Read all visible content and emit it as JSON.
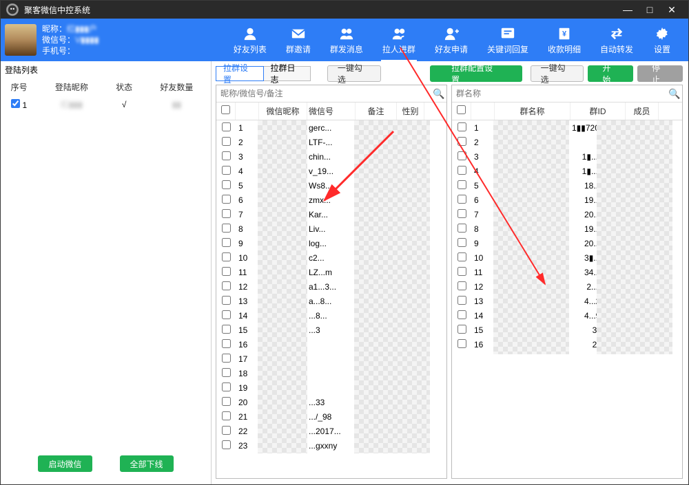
{
  "app_title": "聚客微信中控系统",
  "window_buttons": {
    "min": "—",
    "max": "□",
    "close": "✕"
  },
  "user": {
    "nick_label": "昵称：",
    "nick_value": "红▮▮▮户",
    "wx_label": "微信号：",
    "wx_value": "V▮▮▮▮",
    "phone_label": "手机号：",
    "phone_value": ""
  },
  "nav": [
    {
      "key": "friends",
      "label": "好友列表"
    },
    {
      "key": "invite",
      "label": "群邀请"
    },
    {
      "key": "mass",
      "label": "群发消息"
    },
    {
      "key": "pull",
      "label": "拉人进群",
      "active": true
    },
    {
      "key": "apply",
      "label": "好友申请"
    },
    {
      "key": "keyword",
      "label": "关键词回复"
    },
    {
      "key": "income",
      "label": "收款明细"
    },
    {
      "key": "auto",
      "label": "自动转发"
    },
    {
      "key": "settings",
      "label": "设置"
    }
  ],
  "login_list": {
    "title": "登陆列表",
    "headers": [
      "序号",
      "登陆昵称",
      "状态",
      "好友数量"
    ],
    "rows": [
      {
        "idx": "1",
        "nick": "红▮▮▮",
        "status": "√",
        "count": "▮▮"
      }
    ]
  },
  "left_buttons": {
    "start": "启动微信",
    "offline": "全部下线"
  },
  "tabs_left": {
    "a": "拉群设置",
    "b": "拉群日志",
    "check": "一键勾选"
  },
  "tabs_right": {
    "config": "拉群配置设置",
    "check": "一键勾选",
    "start": "开始",
    "stop": "停止"
  },
  "friends_panel": {
    "placeholder": "昵称/微信号/备注",
    "headers": {
      "nick": "微信昵称",
      "wx": "微信号",
      "note": "备注",
      "sex": "性别"
    },
    "rows": [
      {
        "i": "1",
        "wx": "gerc..."
      },
      {
        "i": "2",
        "wx": "LTF-..."
      },
      {
        "i": "3",
        "wx": "chin..."
      },
      {
        "i": "4",
        "wx": "v_19..."
      },
      {
        "i": "5",
        "wx": "Ws8..."
      },
      {
        "i": "6",
        "wx": "zmx..."
      },
      {
        "i": "7",
        "wx": "Kar..."
      },
      {
        "i": "8",
        "wx": "Liv..."
      },
      {
        "i": "9",
        "wx": "log..."
      },
      {
        "i": "10",
        "wx": "c2..."
      },
      {
        "i": "11",
        "wx": "LZ...m"
      },
      {
        "i": "12",
        "wx": "a1...3..."
      },
      {
        "i": "13",
        "wx": "a...8..."
      },
      {
        "i": "14",
        "wx": "...8..."
      },
      {
        "i": "15",
        "wx": "...3"
      },
      {
        "i": "16",
        "wx": ""
      },
      {
        "i": "17",
        "wx": ""
      },
      {
        "i": "18",
        "wx": ""
      },
      {
        "i": "19",
        "wx": ""
      },
      {
        "i": "20",
        "wx": "...33"
      },
      {
        "i": "21",
        "wx": ".../_98"
      },
      {
        "i": "22",
        "wx": "...2017..."
      },
      {
        "i": "23",
        "wx": "...gxxny"
      }
    ]
  },
  "groups_panel": {
    "placeholder": "群名称",
    "headers": {
      "name": "群名称",
      "gid": "群ID",
      "mem": "成员"
    },
    "rows": [
      {
        "i": "1",
        "name": "",
        "gid": "1▮▮72001144..."
      },
      {
        "i": "2",
        "name": "",
        "gid": ""
      },
      {
        "i": "3",
        "name": "",
        "gid": "1▮...75..."
      },
      {
        "i": "4",
        "name": "名>",
        "gid": "1▮...23..."
      },
      {
        "i": "5",
        "name": "名>",
        "gid": "18...5..."
      },
      {
        "i": "6",
        "name": "▮名>",
        "gid": "19...4..."
      },
      {
        "i": "7",
        "name": "▮名>",
        "gid": "20...▮..."
      },
      {
        "i": "8",
        "name": "▮>",
        "gid": "19...6..."
      },
      {
        "i": "9",
        "name": "...1群",
        "gid": "20...8..."
      },
      {
        "i": "10",
        "name": "",
        "gid": "3▮...9..."
      },
      {
        "i": "11",
        "name": "▮",
        "gid": "34...4..."
      },
      {
        "i": "12",
        "name": "群...",
        "gid": "2...0..."
      },
      {
        "i": "13",
        "name": "",
        "gid": "4...29..."
      },
      {
        "i": "14",
        "name": "",
        "gid": "4...98..."
      },
      {
        "i": "15",
        "name": "",
        "gid": "3..."
      },
      {
        "i": "16",
        "name": "",
        "gid": "2..."
      }
    ]
  },
  "colors": {
    "header_bg": "#2e7df6",
    "green": "#1fb254",
    "gray": "#a0a0a0",
    "arrow": "#ff2a2a"
  }
}
